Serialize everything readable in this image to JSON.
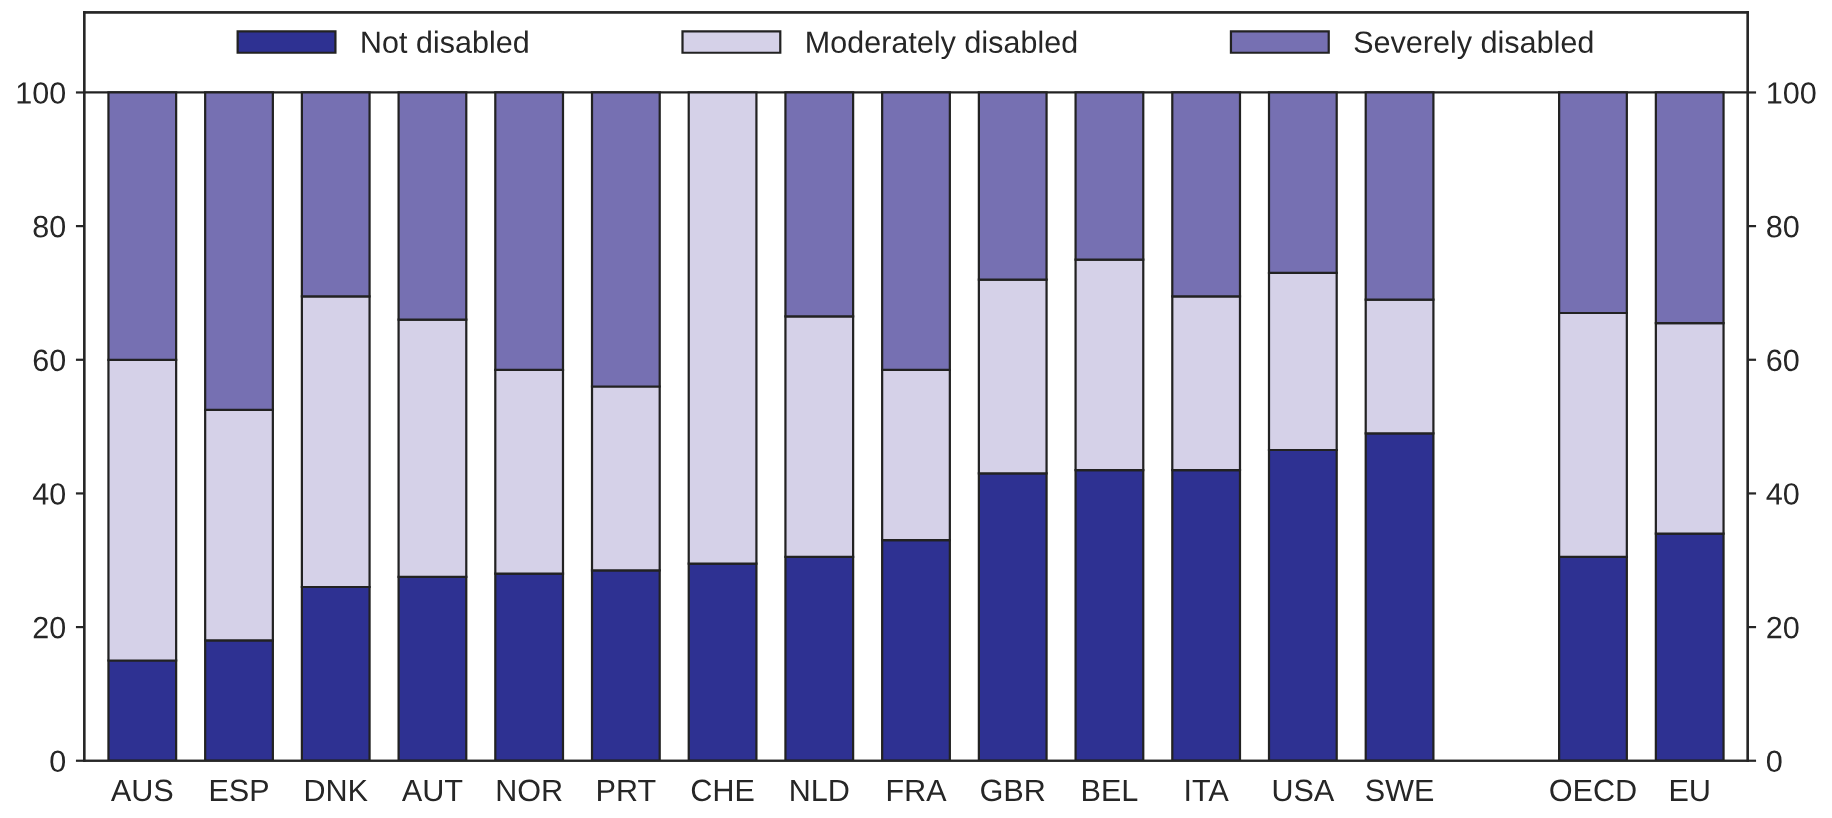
{
  "chart_data": {
    "type": "bar",
    "stacked": true,
    "categories": [
      "AUS",
      "ESP",
      "DNK",
      "AUT",
      "NOR",
      "PRT",
      "CHE",
      "NLD",
      "FRA",
      "GBR",
      "BEL",
      "ITA",
      "USA",
      "SWE",
      null,
      "OECD",
      "EU"
    ],
    "series": [
      {
        "name": "Not disabled",
        "color": "#2e3192",
        "values": [
          15,
          18,
          26,
          27.5,
          28,
          28.5,
          29.5,
          30.5,
          33,
          43,
          43.5,
          43.5,
          46.5,
          49,
          null,
          30.5,
          34
        ]
      },
      {
        "name": "Moderately disabled",
        "color": "#d5d1e8",
        "values": [
          45,
          34.5,
          43.5,
          38.5,
          30.5,
          27.5,
          70.5,
          36,
          25.5,
          29,
          31.5,
          26,
          26.5,
          20,
          null,
          36.5,
          31.5
        ]
      },
      {
        "name": "Severely disabled",
        "color": "#7670b2",
        "values": [
          40,
          47.5,
          30.5,
          34,
          41.5,
          44,
          null,
          33.5,
          41.5,
          28,
          25,
          30.5,
          27,
          31,
          null,
          33,
          34.5
        ]
      }
    ],
    "ylim": [
      0,
      112
    ],
    "yticks": [
      0,
      20,
      40,
      60,
      80,
      100
    ],
    "y2lim": [
      0,
      112
    ],
    "y2ticks": [
      0,
      20,
      40,
      60,
      80,
      100
    ],
    "ref_lines": [
      {
        "axis": "y",
        "value": 100,
        "color": "#222222"
      }
    ],
    "grid": false,
    "legend": "top"
  }
}
